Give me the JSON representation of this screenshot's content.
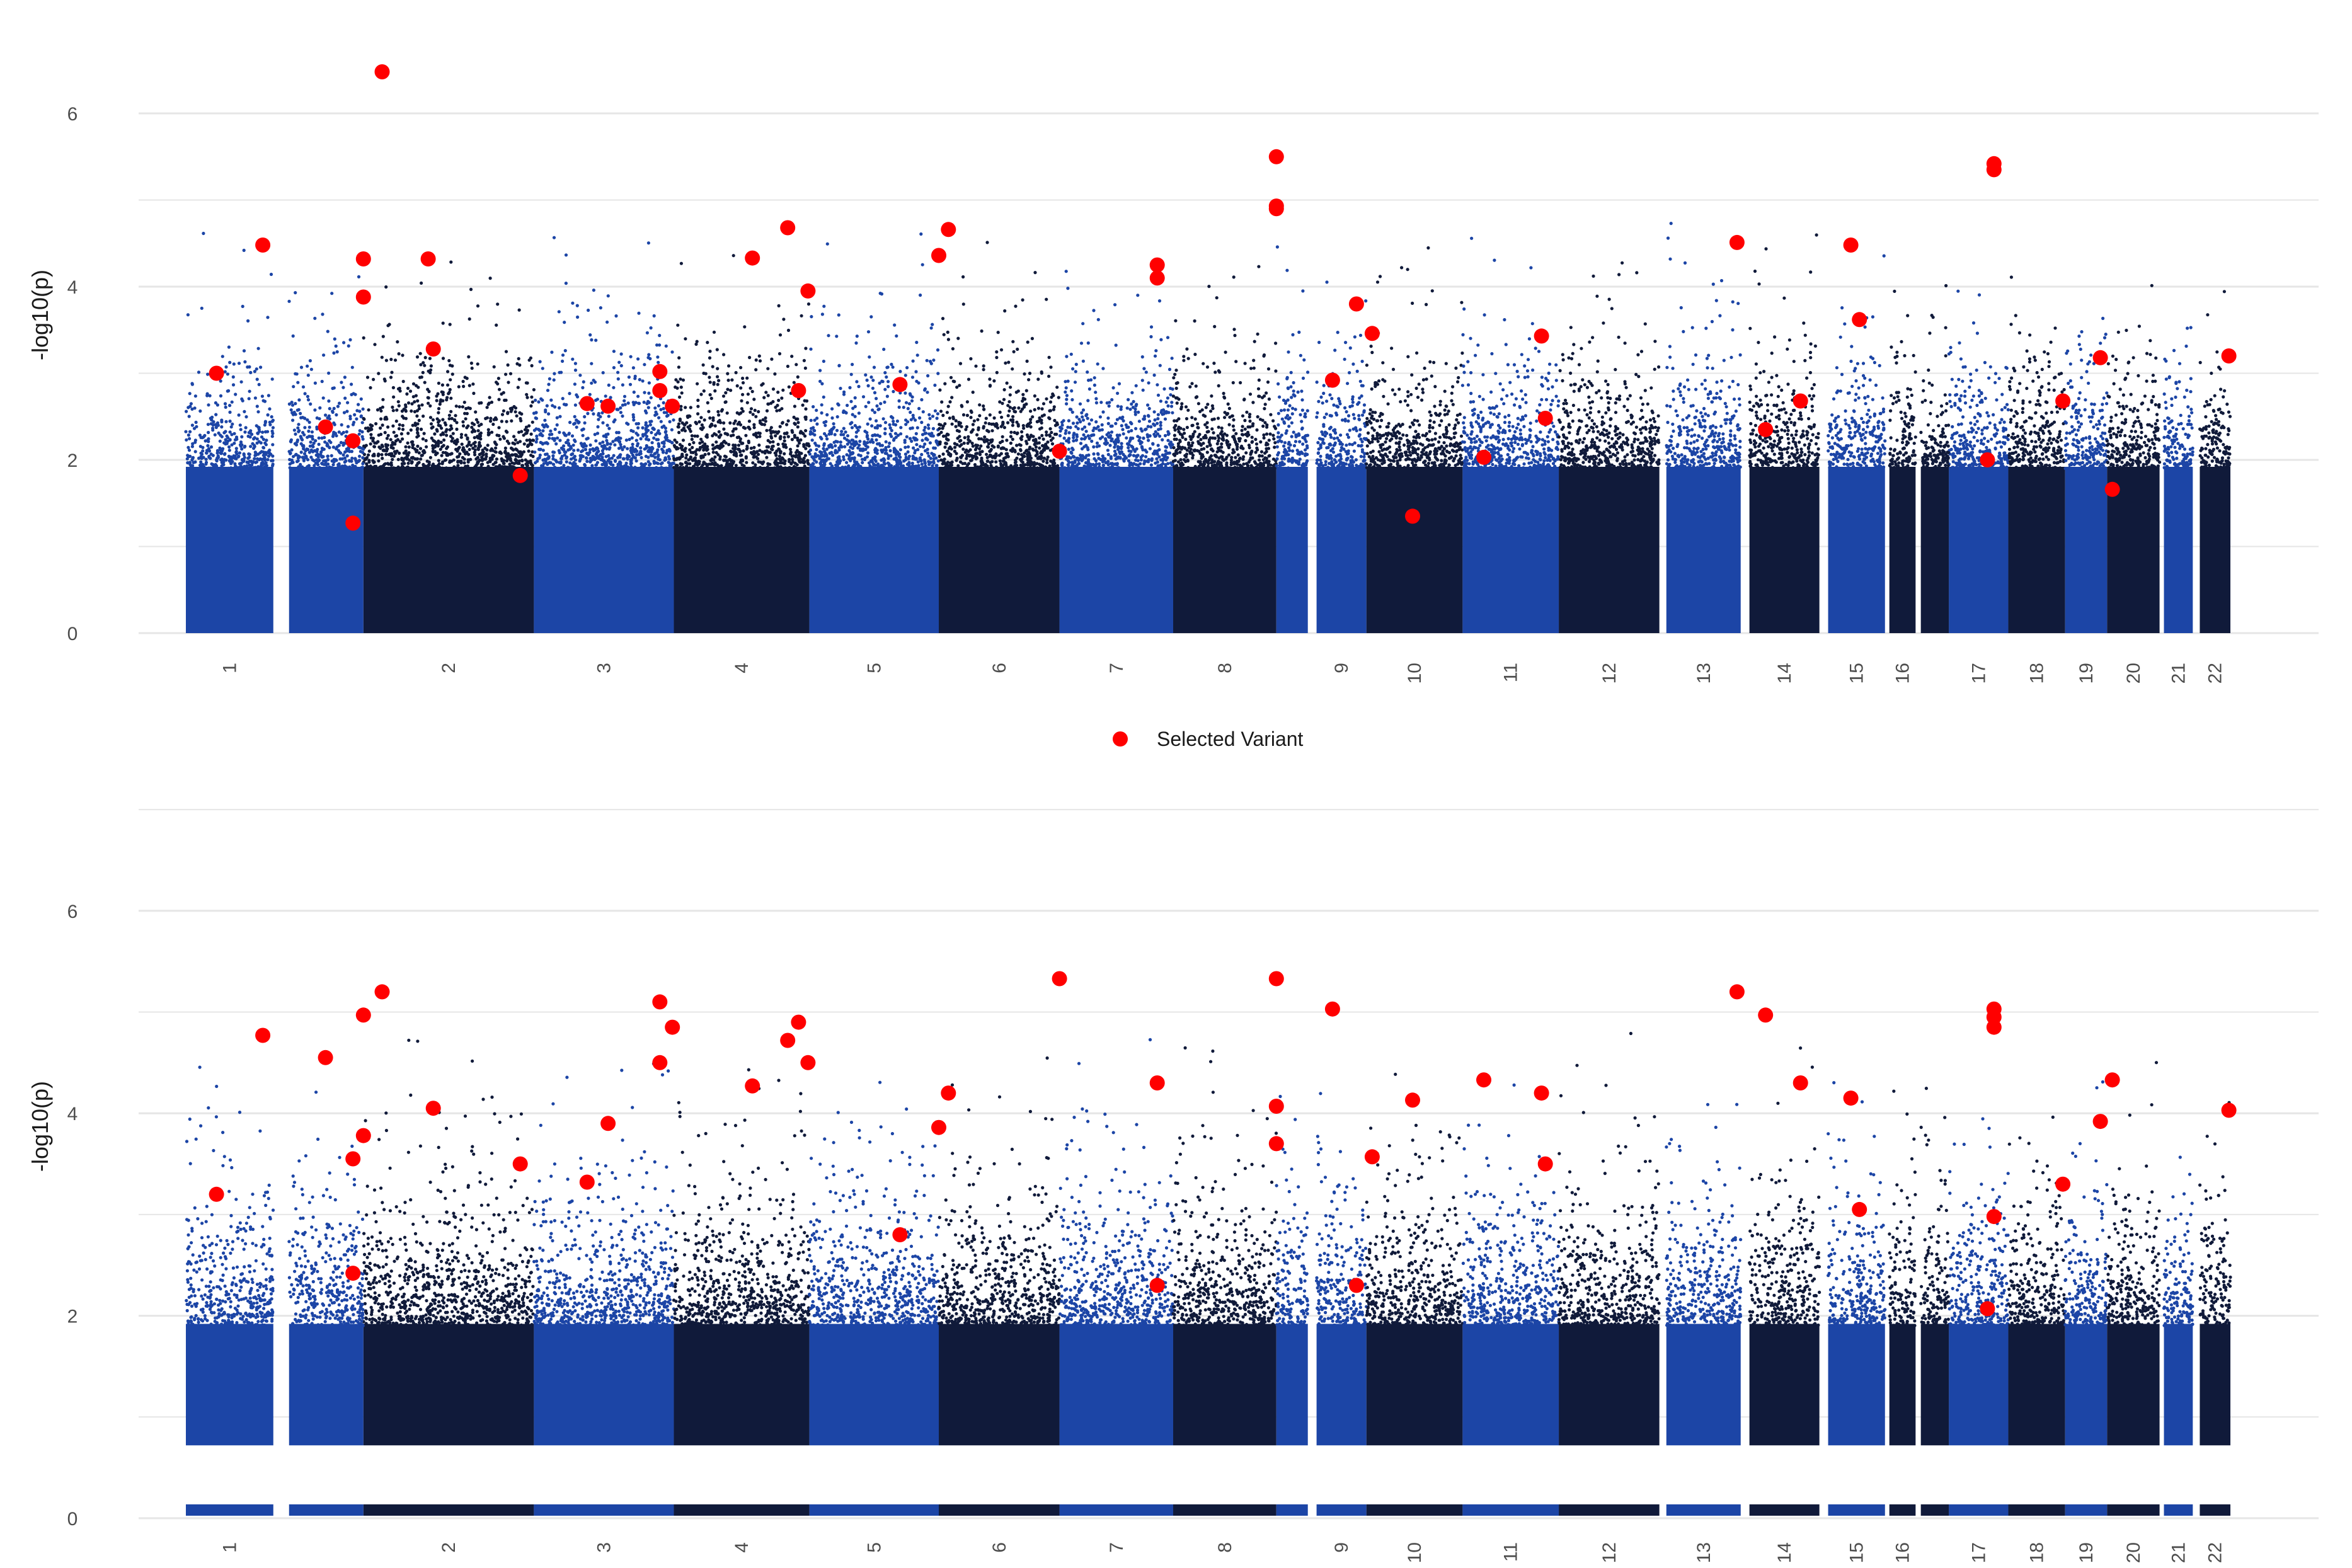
{
  "chart_data": [
    {
      "type": "scatter",
      "subtype": "manhattan",
      "ylabel": "-log10(p)",
      "xlabel": "",
      "ylim": [
        0,
        7
      ],
      "yticks": [
        0,
        2,
        4,
        6
      ],
      "grid": true,
      "baseline": 0,
      "has_chromosome_bar": false,
      "background_peak_scale": 0.75,
      "selected_variants": [
        {
          "chr": "1",
          "pos": 0.35,
          "p": 3.0
        },
        {
          "chr": "1",
          "pos": 0.88,
          "p": 4.48
        },
        {
          "chr": "2",
          "pos": 0.11,
          "p": 6.48
        },
        {
          "chr": "2",
          "pos": 0.41,
          "p": 3.28
        },
        {
          "chr": "2",
          "pos": 0.92,
          "p": 1.82
        },
        {
          "chr": "2",
          "pos": 0.38,
          "p": 4.32
        },
        {
          "chr": "1b",
          "pos": 0.49,
          "p": 2.38
        },
        {
          "chr": "1b",
          "pos": 0.86,
          "p": 2.22
        },
        {
          "chr": "1b",
          "pos": 0.86,
          "p": 1.27
        },
        {
          "chr": "1b",
          "pos": 1.0,
          "p": 4.32
        },
        {
          "chr": "1b",
          "pos": 1.0,
          "p": 3.88
        },
        {
          "chr": "3",
          "pos": 0.38,
          "p": 2.65
        },
        {
          "chr": "3",
          "pos": 0.53,
          "p": 2.62
        },
        {
          "chr": "3",
          "pos": 0.9,
          "p": 3.02
        },
        {
          "chr": "3",
          "pos": 0.9,
          "p": 2.8
        },
        {
          "chr": "3",
          "pos": 0.99,
          "p": 2.62
        },
        {
          "chr": "4",
          "pos": 0.58,
          "p": 4.33
        },
        {
          "chr": "4",
          "pos": 0.84,
          "p": 4.68
        },
        {
          "chr": "4",
          "pos": 0.92,
          "p": 2.8
        },
        {
          "chr": "4",
          "pos": 0.99,
          "p": 3.95
        },
        {
          "chr": "5",
          "pos": 0.7,
          "p": 2.87
        },
        {
          "chr": "6",
          "pos": 0.0,
          "p": 4.36
        },
        {
          "chr": "6",
          "pos": 0.08,
          "p": 4.66
        },
        {
          "chr": "6",
          "pos": 1.0,
          "p": 2.1
        },
        {
          "chr": "7",
          "pos": 0.86,
          "p": 4.25
        },
        {
          "chr": "7",
          "pos": 0.86,
          "p": 4.1
        },
        {
          "chr": "8",
          "pos": 1.0,
          "p": 5.5
        },
        {
          "chr": "8",
          "pos": 1.0,
          "p": 4.9
        },
        {
          "chr": "8",
          "pos": 1.0,
          "p": 4.93
        },
        {
          "chr": "9",
          "pos": 0.32,
          "p": 2.92
        },
        {
          "chr": "9",
          "pos": 0.8,
          "p": 3.8
        },
        {
          "chr": "10",
          "pos": 0.06,
          "p": 3.46
        },
        {
          "chr": "10",
          "pos": 0.48,
          "p": 1.35
        },
        {
          "chr": "11",
          "pos": 0.22,
          "p": 2.03
        },
        {
          "chr": "11",
          "pos": 0.82,
          "p": 3.43
        },
        {
          "chr": "11",
          "pos": 0.86,
          "p": 2.48
        },
        {
          "chr": "13",
          "pos": 0.95,
          "p": 4.51
        },
        {
          "chr": "14",
          "pos": 0.23,
          "p": 2.35
        },
        {
          "chr": "14",
          "pos": 0.73,
          "p": 2.68
        },
        {
          "chr": "15",
          "pos": 0.4,
          "p": 4.48
        },
        {
          "chr": "15",
          "pos": 0.55,
          "p": 3.62
        },
        {
          "chr": "17",
          "pos": 0.65,
          "p": 2.0
        },
        {
          "chr": "17",
          "pos": 0.76,
          "p": 5.42
        },
        {
          "chr": "17",
          "pos": 0.76,
          "p": 5.35
        },
        {
          "chr": "18",
          "pos": 0.96,
          "p": 2.68
        },
        {
          "chr": "19",
          "pos": 0.84,
          "p": 3.18
        },
        {
          "chr": "20",
          "pos": 0.1,
          "p": 1.66
        },
        {
          "chr": "22",
          "pos": 0.95,
          "p": 3.2
        }
      ]
    },
    {
      "type": "scatter",
      "subtype": "manhattan",
      "ylabel": "-log10(p)",
      "xlabel": "",
      "ylim": [
        0,
        7
      ],
      "yticks": [
        0,
        2,
        4,
        6
      ],
      "grid": true,
      "baseline": 0.72,
      "has_chromosome_bar": true,
      "background_peak_scale": 0.8,
      "selected_variants": [
        {
          "chr": "1",
          "pos": 0.35,
          "p": 3.2
        },
        {
          "chr": "1",
          "pos": 0.88,
          "p": 4.77
        },
        {
          "chr": "1b",
          "pos": 0.49,
          "p": 4.55
        },
        {
          "chr": "1b",
          "pos": 0.86,
          "p": 3.55
        },
        {
          "chr": "1b",
          "pos": 0.86,
          "p": 2.42
        },
        {
          "chr": "1b",
          "pos": 1.0,
          "p": 4.97
        },
        {
          "chr": "1b",
          "pos": 1.0,
          "p": 3.78
        },
        {
          "chr": "2",
          "pos": 0.11,
          "p": 5.2
        },
        {
          "chr": "2",
          "pos": 0.41,
          "p": 4.05
        },
        {
          "chr": "2",
          "pos": 0.92,
          "p": 3.5
        },
        {
          "chr": "3",
          "pos": 0.38,
          "p": 3.32
        },
        {
          "chr": "3",
          "pos": 0.53,
          "p": 3.9
        },
        {
          "chr": "3",
          "pos": 0.9,
          "p": 5.1
        },
        {
          "chr": "3",
          "pos": 0.9,
          "p": 4.5
        },
        {
          "chr": "3",
          "pos": 0.99,
          "p": 4.85
        },
        {
          "chr": "4",
          "pos": 0.58,
          "p": 4.27
        },
        {
          "chr": "4",
          "pos": 0.84,
          "p": 4.72
        },
        {
          "chr": "4",
          "pos": 0.92,
          "p": 4.9
        },
        {
          "chr": "4",
          "pos": 0.99,
          "p": 4.5
        },
        {
          "chr": "5",
          "pos": 0.7,
          "p": 2.8
        },
        {
          "chr": "6",
          "pos": 0.0,
          "p": 3.86
        },
        {
          "chr": "6",
          "pos": 0.08,
          "p": 4.2
        },
        {
          "chr": "6",
          "pos": 1.0,
          "p": 5.33
        },
        {
          "chr": "7",
          "pos": 0.86,
          "p": 4.3
        },
        {
          "chr": "7",
          "pos": 0.86,
          "p": 2.3
        },
        {
          "chr": "8",
          "pos": 1.0,
          "p": 5.33
        },
        {
          "chr": "8",
          "pos": 1.0,
          "p": 4.07
        },
        {
          "chr": "8",
          "pos": 1.0,
          "p": 3.7
        },
        {
          "chr": "9",
          "pos": 0.32,
          "p": 5.03
        },
        {
          "chr": "9",
          "pos": 0.8,
          "p": 2.3
        },
        {
          "chr": "10",
          "pos": 0.06,
          "p": 3.57
        },
        {
          "chr": "10",
          "pos": 0.48,
          "p": 4.13
        },
        {
          "chr": "11",
          "pos": 0.22,
          "p": 4.33
        },
        {
          "chr": "11",
          "pos": 0.82,
          "p": 4.2
        },
        {
          "chr": "11",
          "pos": 0.86,
          "p": 3.5
        },
        {
          "chr": "13",
          "pos": 0.95,
          "p": 5.2
        },
        {
          "chr": "14",
          "pos": 0.23,
          "p": 4.97
        },
        {
          "chr": "14",
          "pos": 0.73,
          "p": 4.3
        },
        {
          "chr": "15",
          "pos": 0.4,
          "p": 4.15
        },
        {
          "chr": "15",
          "pos": 0.55,
          "p": 3.05
        },
        {
          "chr": "17",
          "pos": 0.65,
          "p": 2.07
        },
        {
          "chr": "17",
          "pos": 0.76,
          "p": 5.03
        },
        {
          "chr": "17",
          "pos": 0.76,
          "p": 4.85
        },
        {
          "chr": "17",
          "pos": 0.76,
          "p": 4.95
        },
        {
          "chr": "17",
          "pos": 0.76,
          "p": 2.98
        },
        {
          "chr": "18",
          "pos": 0.96,
          "p": 3.3
        },
        {
          "chr": "19",
          "pos": 0.84,
          "p": 3.92
        },
        {
          "chr": "20",
          "pos": 0.1,
          "p": 4.33
        },
        {
          "chr": "22",
          "pos": 0.95,
          "p": 4.03
        }
      ]
    }
  ],
  "chromosomes": [
    {
      "id": "1",
      "label": "1",
      "w": 1.0,
      "color": "blue",
      "gapBefore": 0
    },
    {
      "id": "1b",
      "label": "",
      "w": 0.85,
      "color": "blue",
      "gapBefore": 0.18
    },
    {
      "id": "2",
      "label": "2",
      "w": 1.95,
      "color": "navy",
      "gapBefore": 0
    },
    {
      "id": "3",
      "label": "3",
      "w": 1.6,
      "color": "blue",
      "gapBefore": 0
    },
    {
      "id": "4",
      "label": "4",
      "w": 1.55,
      "color": "navy",
      "gapBefore": 0
    },
    {
      "id": "5",
      "label": "5",
      "w": 1.48,
      "color": "blue",
      "gapBefore": 0
    },
    {
      "id": "6",
      "label": "6",
      "w": 1.38,
      "color": "navy",
      "gapBefore": 0
    },
    {
      "id": "7",
      "label": "7",
      "w": 1.3,
      "color": "blue",
      "gapBefore": 0
    },
    {
      "id": "8",
      "label": "8",
      "w": 1.18,
      "color": "navy",
      "gapBefore": 0
    },
    {
      "id": "8b",
      "label": "",
      "w": 0.36,
      "color": "blue",
      "gapBefore": 0
    },
    {
      "id": "9",
      "label": "9",
      "w": 0.57,
      "color": "blue",
      "gapBefore": 0.1
    },
    {
      "id": "10",
      "label": "10",
      "w": 1.1,
      "color": "navy",
      "gapBefore": 0
    },
    {
      "id": "11",
      "label": "11",
      "w": 1.1,
      "color": "blue",
      "gapBefore": 0
    },
    {
      "id": "12",
      "label": "12",
      "w": 1.15,
      "color": "navy",
      "gapBefore": 0
    },
    {
      "id": "13",
      "label": "13",
      "w": 0.85,
      "color": "blue",
      "gapBefore": 0.08
    },
    {
      "id": "14",
      "label": "14",
      "w": 0.8,
      "color": "navy",
      "gapBefore": 0.1
    },
    {
      "id": "15",
      "label": "15",
      "w": 0.65,
      "color": "blue",
      "gapBefore": 0.1
    },
    {
      "id": "16",
      "label": "16",
      "w": 0.3,
      "color": "navy",
      "gapBefore": 0.05
    },
    {
      "id": "16b",
      "label": "",
      "w": 0.32,
      "color": "navy",
      "gapBefore": 0.06
    },
    {
      "id": "17",
      "label": "17",
      "w": 0.68,
      "color": "blue",
      "gapBefore": 0
    },
    {
      "id": "18",
      "label": "18",
      "w": 0.65,
      "color": "navy",
      "gapBefore": 0
    },
    {
      "id": "19",
      "label": "19",
      "w": 0.48,
      "color": "blue",
      "gapBefore": 0
    },
    {
      "id": "20",
      "label": "20",
      "w": 0.6,
      "color": "navy",
      "gapBefore": 0
    },
    {
      "id": "21",
      "label": "21",
      "w": 0.33,
      "color": "blue",
      "gapBefore": 0.05
    },
    {
      "id": "22",
      "label": "22",
      "w": 0.35,
      "color": "navy",
      "gapBefore": 0.08
    }
  ],
  "colors": {
    "blue": "#1c45a6",
    "navy": "#101a3a",
    "highlight": "#ff0000",
    "grid": "#e6e6e6",
    "text": "#4d4d4d",
    "background": "#ffffff"
  },
  "legend": {
    "label": "Selected Variant",
    "position": "bottom-center"
  }
}
